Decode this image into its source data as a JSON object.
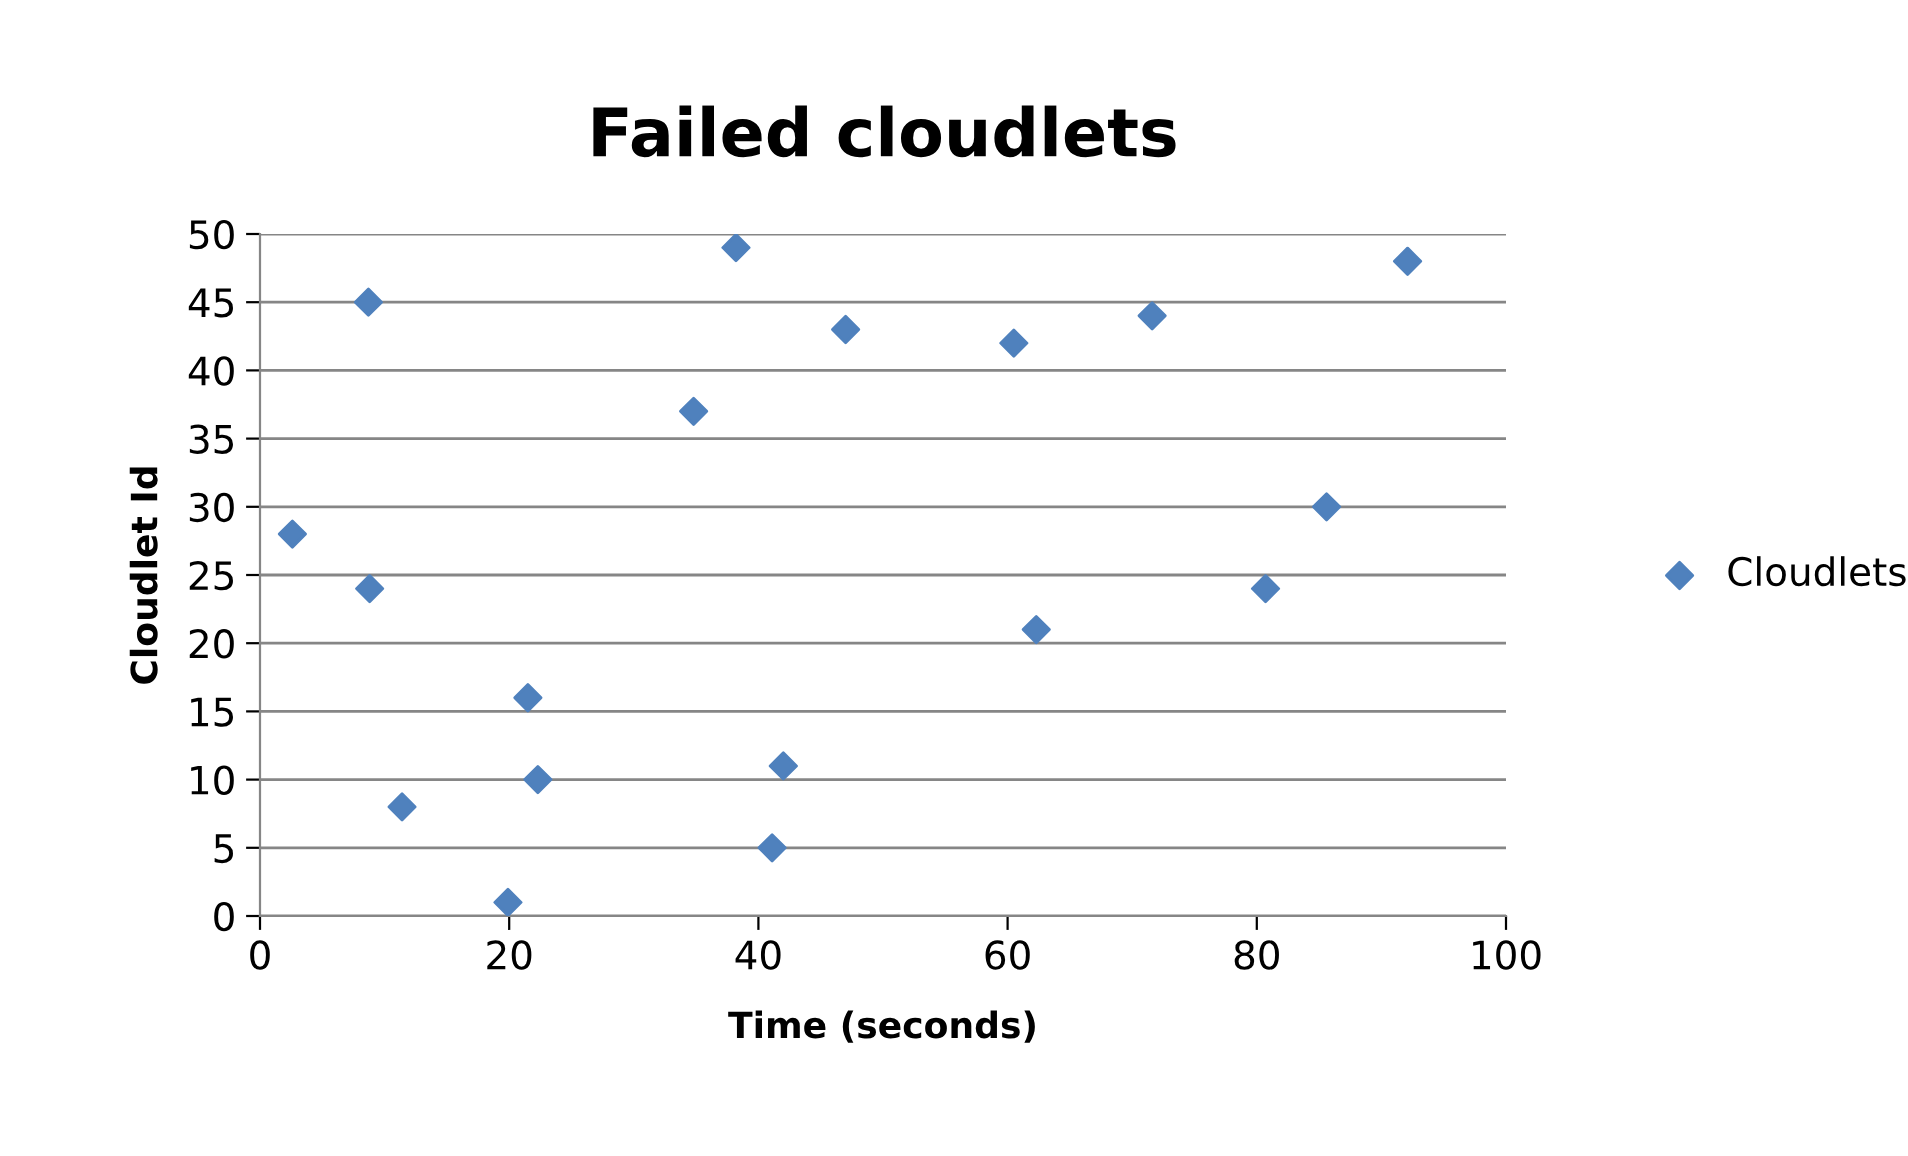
{
  "chart_data": {
    "type": "scatter",
    "title": "Failed cloudlets",
    "xlabel": "Time (seconds)",
    "ylabel": "Cloudlet Id",
    "series": [
      {
        "name": "Cloudlets",
        "color": "#4f81bd",
        "x": [
          2.6,
          8.7,
          8.8,
          11.4,
          19.9,
          21.5,
          22.3,
          34.8,
          38.2,
          41.1,
          42,
          47,
          60.5,
          62.3,
          71.6,
          80.7,
          85.6,
          92.1
        ],
        "values": [
          28,
          45,
          24,
          8,
          1,
          16,
          10,
          37,
          49,
          5,
          11,
          43,
          42,
          21,
          44,
          24,
          30,
          48
        ]
      }
    ],
    "xlim": [
      0,
      100
    ],
    "xticks": [
      0,
      20,
      40,
      60,
      80,
      100
    ],
    "ylim": [
      0,
      50
    ],
    "yticks": [
      0,
      5,
      10,
      15,
      20,
      25,
      30,
      35,
      40,
      45,
      50
    ],
    "grid": "y",
    "legend": "right",
    "marker": "diamond"
  }
}
